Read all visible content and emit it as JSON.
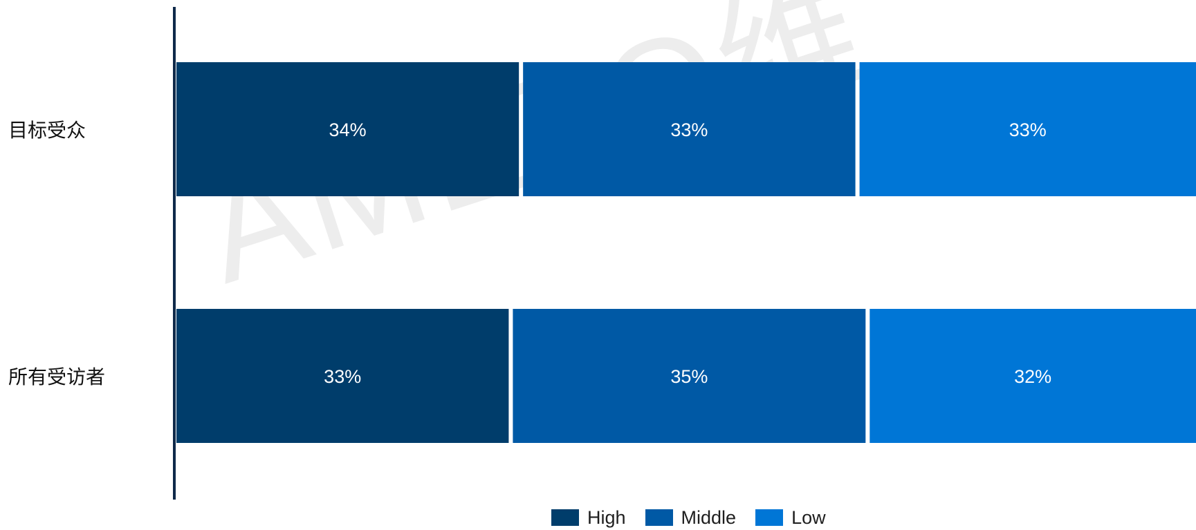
{
  "watermark": "AMEZO维",
  "chart_data": {
    "type": "bar",
    "orientation": "horizontal",
    "stacked": true,
    "title": "",
    "xlabel": "",
    "ylabel": "",
    "xlim": [
      0,
      100
    ],
    "grid": false,
    "legend_position": "bottom-center",
    "categories": [
      "目标受众",
      "所有受访者"
    ],
    "series": [
      {
        "name": "High",
        "values": [
          34,
          33
        ],
        "labels": [
          "34%",
          "33%"
        ],
        "color": "#003d6b"
      },
      {
        "name": "Middle",
        "values": [
          33,
          35
        ],
        "labels": [
          "33%",
          "35%"
        ],
        "color": "#0059a5"
      },
      {
        "name": "Low",
        "values": [
          33,
          32
        ],
        "labels": [
          "33%",
          "32%"
        ],
        "color": "#0076d6"
      }
    ]
  }
}
